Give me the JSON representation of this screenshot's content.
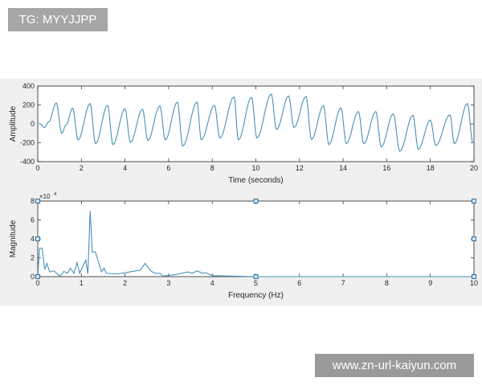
{
  "watermarks": {
    "top_left": "TG: MYYJJPP",
    "bottom_right": "www.zn-url-kaiyun.com"
  },
  "colors": {
    "line": "#4a90b8",
    "figure_bg": "#f0f0f0",
    "axes_bg": "#ffffff"
  },
  "chart_data": [
    {
      "type": "line",
      "xlabel": "Time (seconds)",
      "ylabel": "Amplitude",
      "xlim": [
        0,
        20
      ],
      "ylim": [
        -400,
        400
      ],
      "xticks": [
        "0",
        "2",
        "4",
        "6",
        "8",
        "10",
        "12",
        "14",
        "16",
        "18",
        "20"
      ],
      "yticks": [
        "-400",
        "-200",
        "0",
        "200",
        "400"
      ],
      "xtick_values": [
        0,
        2,
        4,
        6,
        8,
        10,
        12,
        14,
        16,
        18,
        20
      ],
      "ytick_values": [
        -400,
        -200,
        0,
        200,
        400
      ],
      "grid": false,
      "extrema": [
        [
          0,
          0
        ],
        [
          0.12,
          0
        ],
        [
          0.3,
          -40
        ],
        [
          0.5,
          20
        ],
        [
          0.85,
          220
        ],
        [
          1.1,
          -100
        ],
        [
          1.3,
          -10
        ],
        [
          1.6,
          165
        ],
        [
          1.85,
          -170
        ],
        [
          2.4,
          215
        ],
        [
          2.65,
          -210
        ],
        [
          3.2,
          195
        ],
        [
          3.45,
          -220
        ],
        [
          4.0,
          160
        ],
        [
          4.25,
          -195
        ],
        [
          4.8,
          155
        ],
        [
          5.05,
          -175
        ],
        [
          5.6,
          190
        ],
        [
          5.85,
          -170
        ],
        [
          6.4,
          230
        ],
        [
          6.65,
          -235
        ],
        [
          7.3,
          230
        ],
        [
          7.5,
          -170
        ],
        [
          8.1,
          195
        ],
        [
          8.35,
          -150
        ],
        [
          9.0,
          285
        ],
        [
          9.2,
          -170
        ],
        [
          9.8,
          280
        ],
        [
          10.05,
          -150
        ],
        [
          10.7,
          315
        ],
        [
          10.95,
          -60
        ],
        [
          11.5,
          295
        ],
        [
          11.75,
          -40
        ],
        [
          12.3,
          290
        ],
        [
          12.55,
          -165
        ],
        [
          13.1,
          190
        ],
        [
          13.35,
          -220
        ],
        [
          13.9,
          170
        ],
        [
          14.15,
          -210
        ],
        [
          14.7,
          130
        ],
        [
          14.95,
          -210
        ],
        [
          15.5,
          130
        ],
        [
          15.75,
          -245
        ],
        [
          16.3,
          105
        ],
        [
          16.6,
          -290
        ],
        [
          17.2,
          90
        ],
        [
          17.45,
          -270
        ],
        [
          18.0,
          40
        ],
        [
          18.25,
          -230
        ],
        [
          18.9,
          95
        ],
        [
          19.1,
          -210
        ],
        [
          19.7,
          215
        ],
        [
          19.95,
          -200
        ],
        [
          20,
          -200
        ]
      ]
    },
    {
      "type": "line",
      "xlabel": "Frequency (Hz)",
      "ylabel": "Magnitude",
      "y_exponent": "×10",
      "y_exponent_power": "4",
      "xlim": [
        0,
        10
      ],
      "ylim": [
        0,
        8
      ],
      "xticks": [
        "0",
        "1",
        "2",
        "3",
        "4",
        "5",
        "6",
        "7",
        "8",
        "9",
        "10"
      ],
      "yticks": [
        "0",
        "2",
        "4",
        "6",
        "8"
      ],
      "xtick_values": [
        0,
        1,
        2,
        3,
        4,
        5,
        6,
        7,
        8,
        9,
        10
      ],
      "ytick_values": [
        0,
        2,
        4,
        6,
        8
      ],
      "grid": false,
      "points": [
        [
          0,
          0
        ],
        [
          0.04,
          3.0
        ],
        [
          0.1,
          3.0
        ],
        [
          0.16,
          0.77
        ],
        [
          0.21,
          1.4
        ],
        [
          0.27,
          0.5
        ],
        [
          0.37,
          0.6
        ],
        [
          0.51,
          0.05
        ],
        [
          0.6,
          0.56
        ],
        [
          0.68,
          0.35
        ],
        [
          0.75,
          0.9
        ],
        [
          0.83,
          0.35
        ],
        [
          0.9,
          1.5
        ],
        [
          0.96,
          0.35
        ],
        [
          1.1,
          1.75
        ],
        [
          1.15,
          0.3
        ],
        [
          1.2,
          6.95
        ],
        [
          1.25,
          2.6
        ],
        [
          1.32,
          2.6
        ],
        [
          1.46,
          0.5
        ],
        [
          1.52,
          0.9
        ],
        [
          1.57,
          0.35
        ],
        [
          1.82,
          0.3
        ],
        [
          2.0,
          0.4
        ],
        [
          2.17,
          0.56
        ],
        [
          2.35,
          0.68
        ],
        [
          2.46,
          1.4
        ],
        [
          2.6,
          0.56
        ],
        [
          2.7,
          0.35
        ],
        [
          2.8,
          0.35
        ],
        [
          2.87,
          0.05
        ],
        [
          3.15,
          0.2
        ],
        [
          3.44,
          0.5
        ],
        [
          3.54,
          0.35
        ],
        [
          3.65,
          0.6
        ],
        [
          3.79,
          0.35
        ],
        [
          3.86,
          0.4
        ],
        [
          4.0,
          0.1
        ],
        [
          4.5,
          0.05
        ],
        [
          5,
          0
        ],
        [
          10,
          0
        ]
      ],
      "handles": [
        [
          0,
          0
        ],
        [
          0,
          4
        ],
        [
          0,
          8
        ],
        [
          5,
          0
        ],
        [
          5,
          8
        ],
        [
          10,
          0
        ],
        [
          10,
          4
        ],
        [
          10,
          8
        ]
      ]
    }
  ]
}
